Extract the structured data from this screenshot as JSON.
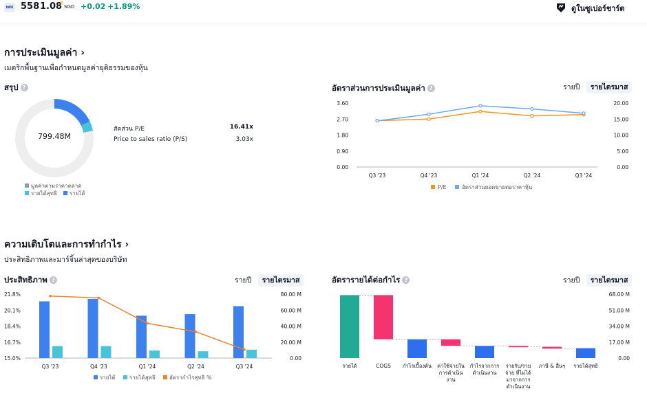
{
  "header": {
    "logo_text": "ยศธ",
    "code": "558",
    "price": "1.08",
    "price_sup": "D",
    "currency": "SGD",
    "change": "+0.02",
    "change_pct": "+1.89%",
    "supercharts_label": "ดูในซูเปอร์ชาร์ต"
  },
  "valuation": {
    "title": "การประเมินมูลค่า ›",
    "subtitle": "เมตริกพื้นฐานเพื่อกำหนดมูลค่ายุติธรรมของหุ้น",
    "summary": {
      "title": "สรุป",
      "center_value": "799.48M",
      "donut_fractions": {
        "market_cap": 0.78,
        "net_income": 0.04,
        "revenue": 0.18
      },
      "metrics": [
        {
          "label": "สัดส่วน P/E",
          "value": "16.41x"
        },
        {
          "label": "Price to sales ratio (P/S)",
          "value": "3.03x"
        }
      ],
      "legend": [
        "มูลค่าตามราคาตลาด",
        "รายได้สุทธิ",
        "รายได้"
      ]
    },
    "ratios": {
      "title": "อัตราส่วนการประเมินมูลค่า",
      "toggle": [
        "รายปี",
        "รายไตรมาส"
      ],
      "legend": [
        "P/E",
        "อัตราส่วนยอดขายต่อราคาหุ้น"
      ]
    }
  },
  "growth": {
    "title": "ความเติบโตและการทำกำไร ›",
    "subtitle": "ประสิทธิภาพและมาร์จิ้นล่าสุดของบริษัท",
    "efficiency": {
      "title": "ประสิทธิภาพ",
      "toggle": [
        "รายปี",
        "รายไตรมาส"
      ],
      "legend": [
        "รายได้",
        "รายได้สุทธิ",
        "อัตรากำไรสุทธิ %"
      ]
    },
    "waterfall": {
      "title": "อัตรารายได้ต่อกำไร",
      "toggle": [
        "รายปี",
        "รายไตรมาส"
      ]
    }
  },
  "colors": {
    "revenue": "#3d80f0",
    "net_income": "#47c3dc",
    "market_cap": "#eeeeee",
    "pe": "#f69419",
    "ps": "#6aa8f0",
    "margin": "#f08229",
    "wf_pos": "#22ab94",
    "wf_neg": "#f7336f",
    "wf_blue": "#2e6ff0"
  },
  "chart_data": [
    {
      "type": "line",
      "title": "อัตราส่วนการประเมินมูลค่า",
      "categories": [
        "Q3 '23",
        "Q4 '23",
        "Q1 '24",
        "Q2 '24",
        "Q3 '24"
      ],
      "y_left_ticks": [
        "3.60",
        "2.70",
        "1.80",
        "0.90",
        "0.00"
      ],
      "y_right_ticks": [
        "20.00",
        "15.00",
        "10.00",
        "5.00",
        "0.00"
      ],
      "ylim_left": [
        0,
        3.6
      ],
      "ylim_right": [
        0,
        20
      ],
      "series": [
        {
          "name": "P/E",
          "axis": "right",
          "values": [
            14.5,
            15.0,
            17.4,
            16.0,
            16.4
          ]
        },
        {
          "name": "อัตราส่วนยอดขายต่อราคาหุ้น",
          "axis": "left",
          "values": [
            2.6,
            2.97,
            3.45,
            3.27,
            3.03
          ]
        }
      ],
      "legend_position": "bottom"
    },
    {
      "type": "bar",
      "title": "ประสิทธิภาพ",
      "categories": [
        "Q3 '23",
        "Q4 '23",
        "Q1 '24",
        "Q2 '24",
        "Q3 '24"
      ],
      "y_left_ticks": [
        "21.8%",
        "20.1%",
        "18.4%",
        "16.7%",
        "15.0%"
      ],
      "y_right_ticks": [
        "80.00 M",
        "60.00 M",
        "40.00 M",
        "20.00 M",
        "0.00"
      ],
      "ylim_left": [
        15,
        21.8
      ],
      "ylim_right": [
        0,
        80
      ],
      "series": [
        {
          "name": "รายได้",
          "axis": "right",
          "values": [
            71,
            74,
            53,
            55,
            65
          ]
        },
        {
          "name": "รายได้สุทธิ",
          "axis": "right",
          "values": [
            15,
            15,
            9.5,
            8.5,
            10.5
          ]
        },
        {
          "name": "อัตรากำไรสุทธิ %",
          "axis": "left",
          "type": "line",
          "values": [
            21.6,
            21.4,
            18.7,
            17.8,
            15.9
          ]
        }
      ],
      "legend_position": "bottom"
    },
    {
      "type": "bar",
      "title": "อัตรารายได้ต่อกำไร",
      "categories": [
        "รายได้",
        "COGS",
        "กำไรเบื้องต้น",
        "ค่าใช้จ่ายในการดำเนินงาน",
        "กำไรจากการดำเนินงาน",
        "รายรับ/รายจ่าย ที่ไม่ได้มาจากการดำเนินงาน",
        "ภาษี & อื่นๆ",
        "รายได้สุทธิ"
      ],
      "category_lines": [
        [
          "รายได้"
        ],
        [
          "COGS"
        ],
        [
          "กำไรเบื้องต้น"
        ],
        [
          "ค่าใช้จ่ายใน",
          "การดำเนิน",
          "งาน"
        ],
        [
          "กำไรจากการ",
          "ดำเนินงาน"
        ],
        [
          "รายรับ/ราย",
          "จ่าย ที่ไม่ได้",
          "มาจากการ",
          "ดำเนินงาน"
        ],
        [
          "ภาษี & อื่นๆ"
        ],
        [
          "รายได้สุทธิ"
        ]
      ],
      "y_right_ticks": [
        "68.00 M",
        "51.00 M",
        "34.00 M",
        "17.00 M",
        "0.00"
      ],
      "ylim": [
        0,
        68
      ],
      "steps": [
        {
          "from": 0,
          "to": 67,
          "kind": "pos"
        },
        {
          "from": 67,
          "to": 20,
          "kind": "neg"
        },
        {
          "from": 0,
          "to": 20,
          "kind": "blue"
        },
        {
          "from": 20,
          "to": 13,
          "kind": "neg"
        },
        {
          "from": 0,
          "to": 13,
          "kind": "blue"
        },
        {
          "from": 13,
          "to": 12,
          "kind": "neg"
        },
        {
          "from": 12,
          "to": 10,
          "kind": "neg"
        },
        {
          "from": 0,
          "to": 10.5,
          "kind": "blue"
        }
      ]
    }
  ]
}
